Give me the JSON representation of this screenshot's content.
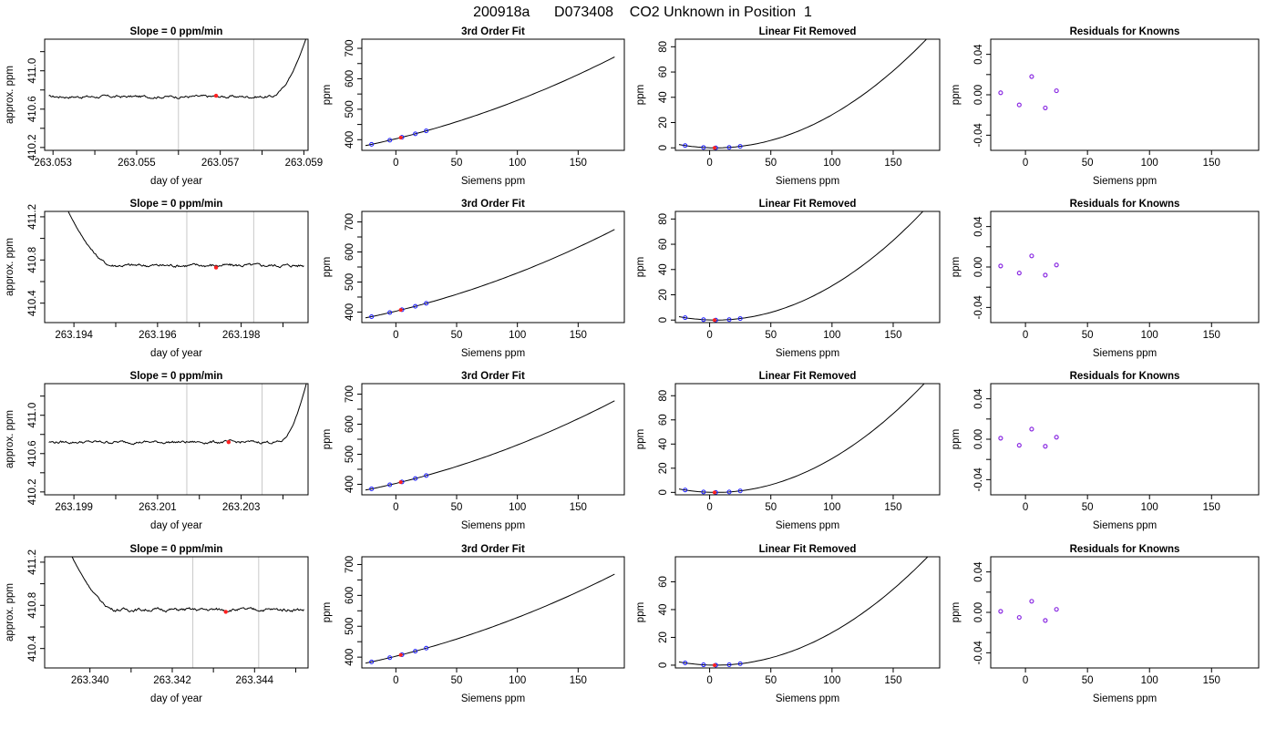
{
  "title": "200918a      D073408    CO2 Unknown in Position  1",
  "colors": {
    "line": "#000000",
    "guide": "#c8c8c8",
    "known_point": "#1a1aff",
    "unknown_point": "#ff2020",
    "residual_point": "#8a2be2"
  },
  "chart_data": [
    {
      "type": "line",
      "row": 0,
      "col": 0,
      "title": "Slope =  0  ppm/min",
      "xlabel": "day of year",
      "ylabel": "approx. ppm",
      "xlim": [
        263.0528,
        263.0591
      ],
      "ylim": [
        410.17,
        411.33
      ],
      "xticks": [
        263.053,
        263.054,
        263.055,
        263.056,
        263.057,
        263.058,
        263.059
      ],
      "xtick_labels": [
        "263.053",
        "",
        "263.055",
        "",
        "263.057",
        "",
        "263.059"
      ],
      "yticks": [
        410.2,
        410.4,
        410.6,
        410.8,
        411.0,
        411.2
      ],
      "ytick_labels": [
        "410.2",
        "",
        "410.6",
        "",
        "411.0",
        ""
      ],
      "vlines": [
        263.056,
        263.0578
      ],
      "highlight": {
        "x": 263.0569,
        "y": 410.74
      },
      "trace": {
        "x_start": 263.0529,
        "x_plateau_end": 263.0582,
        "plateau": 410.73,
        "edge": {
          "side": "right",
          "peak": 411.4
        }
      }
    },
    {
      "type": "line",
      "row": 1,
      "col": 0,
      "title": "Slope =  0  ppm/min",
      "xlabel": "day of year",
      "ylabel": "approx. ppm",
      "xlim": [
        263.1933,
        263.1996
      ],
      "ylim": [
        410.22,
        411.25
      ],
      "xticks": [
        263.194,
        263.195,
        263.196,
        263.197,
        263.198,
        263.199
      ],
      "xtick_labels": [
        "263.194",
        "",
        "263.196",
        "",
        "263.198",
        ""
      ],
      "yticks": [
        410.4,
        410.6,
        410.8,
        411.0,
        411.2
      ],
      "ytick_labels": [
        "410.4",
        "",
        "410.8",
        "",
        "411.2"
      ],
      "vlines": [
        263.1967,
        263.1983
      ],
      "highlight": {
        "x": 263.1974,
        "y": 410.73
      },
      "trace": {
        "x_end": 263.1995,
        "x_plateau_start": 263.1949,
        "plateau": 410.75,
        "edge": {
          "side": "left",
          "x": 263.1938,
          "peak": 411.3
        }
      }
    },
    {
      "type": "line",
      "row": 2,
      "col": 0,
      "title": "Slope =  0  ppm/min",
      "xlabel": "day of year",
      "ylabel": "approx. ppm",
      "xlim": [
        263.1983,
        263.2046
      ],
      "ylim": [
        410.17,
        411.33
      ],
      "xticks": [
        263.199,
        263.2,
        263.201,
        263.202,
        263.203,
        263.204
      ],
      "xtick_labels": [
        "263.199",
        "",
        "263.201",
        "",
        "263.203",
        ""
      ],
      "yticks": [
        410.2,
        410.4,
        410.6,
        410.8,
        411.0,
        411.2
      ],
      "ytick_labels": [
        "410.2",
        "",
        "410.6",
        "",
        "411.0",
        ""
      ],
      "vlines": [
        263.2017,
        263.2035
      ],
      "highlight": {
        "x": 263.2027,
        "y": 410.72
      },
      "trace": {
        "x_start": 263.1984,
        "x_plateau_end": 263.2039,
        "plateau": 410.72,
        "edge": {
          "side": "right",
          "peak": 411.4
        }
      }
    },
    {
      "type": "line",
      "row": 3,
      "col": 0,
      "title": "Slope =  0  ppm/min",
      "xlabel": "day of year",
      "ylabel": "approx. ppm",
      "xlim": [
        263.3389,
        263.3453
      ],
      "ylim": [
        410.22,
        411.25
      ],
      "xticks": [
        263.34,
        263.341,
        263.342,
        263.343,
        263.344,
        263.345
      ],
      "xtick_labels": [
        "263.340",
        "",
        "263.342",
        "",
        "263.344",
        ""
      ],
      "yticks": [
        410.4,
        410.6,
        410.8,
        411.0,
        411.2
      ],
      "ytick_labels": [
        "410.4",
        "",
        "410.8",
        "",
        "411.2"
      ],
      "vlines": [
        263.3425,
        263.3441
      ],
      "highlight": {
        "x": 263.3433,
        "y": 410.74
      },
      "trace": {
        "x_end": 263.3452,
        "x_plateau_start": 263.3406,
        "plateau": 410.76,
        "edge": {
          "side": "left",
          "x": 263.3395,
          "peak": 411.3
        }
      }
    },
    {
      "type": "line",
      "row": 0,
      "col": 1,
      "title": "3rd Order Fit",
      "xlabel": "Siemens ppm",
      "ylabel": "ppm",
      "xlim": [
        -28,
        188
      ],
      "ylim": [
        365,
        730
      ],
      "xticks": [
        0,
        50,
        100,
        150
      ],
      "xtick_labels": [
        "0",
        "50",
        "100",
        "150"
      ],
      "yticks": [
        400,
        450,
        500,
        550,
        600,
        650,
        700
      ],
      "ytick_labels": [
        "400",
        "",
        "500",
        "",
        "600",
        "",
        "700"
      ],
      "curve": {
        "x_range": [
          -25,
          180
        ],
        "quadratic_ppm_per_ppm2": 0.0029,
        "slope": 1.0,
        "intercept": 403
      },
      "points_known_x": [
        -20,
        -5,
        5,
        16,
        25
      ],
      "points_unknown_x": [
        4
      ]
    },
    {
      "type": "line",
      "row": 1,
      "col": 1,
      "title": "3rd Order Fit",
      "xlabel": "Siemens ppm",
      "ylabel": "ppm",
      "xlim": [
        -28,
        188
      ],
      "ylim": [
        365,
        735
      ],
      "xticks": [
        0,
        50,
        100,
        150
      ],
      "xtick_labels": [
        "0",
        "50",
        "100",
        "150"
      ],
      "yticks": [
        400,
        450,
        500,
        550,
        600,
        650,
        700
      ],
      "ytick_labels": [
        "400",
        "",
        "500",
        "",
        "600",
        "",
        "700"
      ],
      "curve": {
        "x_range": [
          -25,
          180
        ],
        "quadratic_ppm_per_ppm2": 0.003,
        "slope": 1.0,
        "intercept": 403
      },
      "points_known_x": [
        -20,
        -5,
        5,
        16,
        25
      ],
      "points_unknown_x": [
        4
      ]
    },
    {
      "type": "line",
      "row": 2,
      "col": 1,
      "title": "3rd Order Fit",
      "xlabel": "Siemens ppm",
      "ylabel": "ppm",
      "xlim": [
        -28,
        188
      ],
      "ylim": [
        365,
        735
      ],
      "xticks": [
        0,
        50,
        100,
        150
      ],
      "xtick_labels": [
        "0",
        "50",
        "100",
        "150"
      ],
      "yticks": [
        400,
        450,
        500,
        550,
        600,
        650,
        700
      ],
      "ytick_labels": [
        "400",
        "",
        "500",
        "",
        "600",
        "",
        "700"
      ],
      "curve": {
        "x_range": [
          -25,
          180
        ],
        "quadratic_ppm_per_ppm2": 0.0031,
        "slope": 1.0,
        "intercept": 403
      },
      "points_known_x": [
        -20,
        -5,
        5,
        16,
        25
      ],
      "points_unknown_x": [
        4
      ]
    },
    {
      "type": "line",
      "row": 3,
      "col": 1,
      "title": "3rd Order Fit",
      "xlabel": "Siemens ppm",
      "ylabel": "ppm",
      "xlim": [
        -28,
        188
      ],
      "ylim": [
        365,
        725
      ],
      "xticks": [
        0,
        50,
        100,
        150
      ],
      "xtick_labels": [
        "0",
        "50",
        "100",
        "150"
      ],
      "yticks": [
        400,
        450,
        500,
        550,
        600,
        650,
        700
      ],
      "ytick_labels": [
        "400",
        "",
        "500",
        "",
        "600",
        "",
        "700"
      ],
      "curve": {
        "x_range": [
          -25,
          180
        ],
        "quadratic_ppm_per_ppm2": 0.0028,
        "slope": 1.0,
        "intercept": 403
      },
      "points_known_x": [
        -20,
        -5,
        5,
        16,
        25
      ],
      "points_unknown_x": [
        4
      ]
    },
    {
      "type": "line",
      "row": 0,
      "col": 2,
      "title": "Linear Fit Removed",
      "xlabel": "Siemens ppm",
      "ylabel": "ppm",
      "xlim": [
        -28,
        188
      ],
      "ylim": [
        -2,
        86
      ],
      "xticks": [
        0,
        50,
        100,
        150
      ],
      "xtick_labels": [
        "0",
        "50",
        "100",
        "150"
      ],
      "yticks": [
        0,
        20,
        40,
        60,
        80
      ],
      "ytick_labels": [
        "0",
        "20",
        "40",
        "60",
        "80"
      ],
      "curve": {
        "x_range": [
          -25,
          180
        ],
        "quadratic_ppm_per_ppm2": 0.0029,
        "vertex_x": 5,
        "vertex_y": 0
      },
      "points_known_x": [
        -20,
        -5,
        5,
        16,
        25
      ],
      "points_unknown_x": [
        4
      ]
    },
    {
      "type": "line",
      "row": 1,
      "col": 2,
      "title": "Linear Fit Removed",
      "xlabel": "Siemens ppm",
      "ylabel": "ppm",
      "xlim": [
        -28,
        188
      ],
      "ylim": [
        -2,
        86
      ],
      "xticks": [
        0,
        50,
        100,
        150
      ],
      "xtick_labels": [
        "0",
        "50",
        "100",
        "150"
      ],
      "yticks": [
        0,
        20,
        40,
        60,
        80
      ],
      "ytick_labels": [
        "0",
        "20",
        "40",
        "60",
        "80"
      ],
      "curve": {
        "x_range": [
          -25,
          180
        ],
        "quadratic_ppm_per_ppm2": 0.003,
        "vertex_x": 5,
        "vertex_y": 0
      },
      "points_known_x": [
        -20,
        -5,
        5,
        16,
        25
      ],
      "points_unknown_x": [
        4
      ]
    },
    {
      "type": "line",
      "row": 2,
      "col": 2,
      "title": "Linear Fit Removed",
      "xlabel": "Siemens ppm",
      "ylabel": "ppm",
      "xlim": [
        -28,
        188
      ],
      "ylim": [
        -2,
        90
      ],
      "xticks": [
        0,
        50,
        100,
        150
      ],
      "xtick_labels": [
        "0",
        "50",
        "100",
        "150"
      ],
      "yticks": [
        0,
        20,
        40,
        60,
        80
      ],
      "ytick_labels": [
        "0",
        "20",
        "40",
        "60",
        "80"
      ],
      "curve": {
        "x_range": [
          -25,
          180
        ],
        "quadratic_ppm_per_ppm2": 0.0031,
        "vertex_x": 5,
        "vertex_y": 0
      },
      "points_known_x": [
        -20,
        -5,
        5,
        16,
        25
      ],
      "points_unknown_x": [
        4
      ]
    },
    {
      "type": "line",
      "row": 3,
      "col": 2,
      "title": "Linear Fit Removed",
      "xlabel": "Siemens ppm",
      "ylabel": "ppm",
      "xlim": [
        -28,
        188
      ],
      "ylim": [
        -2,
        78
      ],
      "xticks": [
        0,
        50,
        100,
        150
      ],
      "xtick_labels": [
        "0",
        "50",
        "100",
        "150"
      ],
      "yticks": [
        0,
        20,
        40,
        60
      ],
      "ytick_labels": [
        "0",
        "20",
        "40",
        "60"
      ],
      "curve": {
        "x_range": [
          -25,
          180
        ],
        "quadratic_ppm_per_ppm2": 0.0026,
        "vertex_x": 5,
        "vertex_y": 0
      },
      "points_known_x": [
        -20,
        -5,
        5,
        16,
        25
      ],
      "points_unknown_x": [
        4
      ]
    },
    {
      "type": "scatter",
      "row": 0,
      "col": 3,
      "title": "Residuals for Knowns",
      "xlabel": "Siemens ppm",
      "ylabel": "ppm",
      "xlim": [
        -28,
        188
      ],
      "ylim": [
        -0.055,
        0.055
      ],
      "xticks": [
        0,
        50,
        100,
        150
      ],
      "xtick_labels": [
        "0",
        "50",
        "100",
        "150"
      ],
      "yticks": [
        -0.04,
        -0.02,
        0.0,
        0.02,
        0.04
      ],
      "ytick_labels": [
        "-0.04",
        "",
        "0.00",
        "",
        "0.04"
      ],
      "points": {
        "x": [
          -20,
          -5,
          5,
          16,
          25
        ],
        "y": [
          0.002,
          -0.01,
          0.018,
          -0.013,
          0.004
        ]
      }
    },
    {
      "type": "scatter",
      "row": 1,
      "col": 3,
      "title": "Residuals for Knowns",
      "xlabel": "Siemens ppm",
      "ylabel": "ppm",
      "xlim": [
        -28,
        188
      ],
      "ylim": [
        -0.055,
        0.055
      ],
      "xticks": [
        0,
        50,
        100,
        150
      ],
      "xtick_labels": [
        "0",
        "50",
        "100",
        "150"
      ],
      "yticks": [
        -0.04,
        -0.02,
        0.0,
        0.02,
        0.04
      ],
      "ytick_labels": [
        "-0.04",
        "",
        "0.00",
        "",
        "0.04"
      ],
      "points": {
        "x": [
          -20,
          -5,
          5,
          16,
          25
        ],
        "y": [
          0.001,
          -0.006,
          0.011,
          -0.008,
          0.002
        ]
      }
    },
    {
      "type": "scatter",
      "row": 2,
      "col": 3,
      "title": "Residuals for Knowns",
      "xlabel": "Siemens ppm",
      "ylabel": "ppm",
      "xlim": [
        -28,
        188
      ],
      "ylim": [
        -0.055,
        0.055
      ],
      "xticks": [
        0,
        50,
        100,
        150
      ],
      "xtick_labels": [
        "0",
        "50",
        "100",
        "150"
      ],
      "yticks": [
        -0.04,
        -0.02,
        0.0,
        0.02,
        0.04
      ],
      "ytick_labels": [
        "-0.04",
        "",
        "0.00",
        "",
        "0.04"
      ],
      "points": {
        "x": [
          -20,
          -5,
          5,
          16,
          25
        ],
        "y": [
          0.001,
          -0.006,
          0.01,
          -0.007,
          0.002
        ]
      }
    },
    {
      "type": "scatter",
      "row": 3,
      "col": 3,
      "title": "Residuals for Knowns",
      "xlabel": "Siemens ppm",
      "ylabel": "ppm",
      "xlim": [
        -28,
        188
      ],
      "ylim": [
        -0.055,
        0.055
      ],
      "xticks": [
        0,
        50,
        100,
        150
      ],
      "xtick_labels": [
        "0",
        "50",
        "100",
        "150"
      ],
      "yticks": [
        -0.04,
        -0.02,
        0.0,
        0.02,
        0.04
      ],
      "ytick_labels": [
        "-0.04",
        "",
        "0.00",
        "",
        "0.04"
      ],
      "points": {
        "x": [
          -20,
          -5,
          5,
          16,
          25
        ],
        "y": [
          0.001,
          -0.005,
          0.011,
          -0.008,
          0.003
        ]
      }
    }
  ]
}
